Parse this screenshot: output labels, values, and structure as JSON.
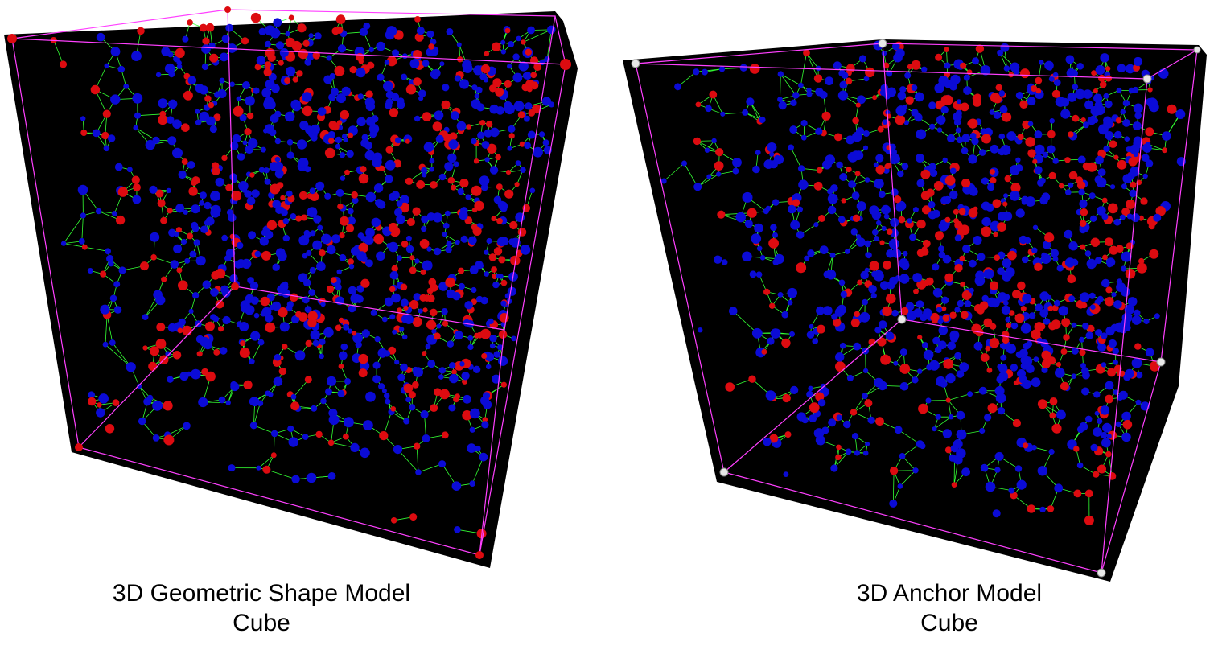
{
  "colors": {
    "background": "#ffffff",
    "cube_faces": "#000000",
    "cube_edges": "#ff40ff",
    "links": "#33ff33",
    "node_blue": "#0b0bd6",
    "node_red": "#dd0b10",
    "anchor": "#e8e8e8"
  },
  "models": [
    {
      "name": "3D Geometric Shape Model",
      "shape": "Cube",
      "node_icon": "sensor-node-icon",
      "anchor_icon": null
    },
    {
      "name": "3D Anchor Model",
      "shape": "Cube",
      "node_icon": "sensor-node-icon",
      "anchor_icon": "anchor-node-icon"
    }
  ]
}
